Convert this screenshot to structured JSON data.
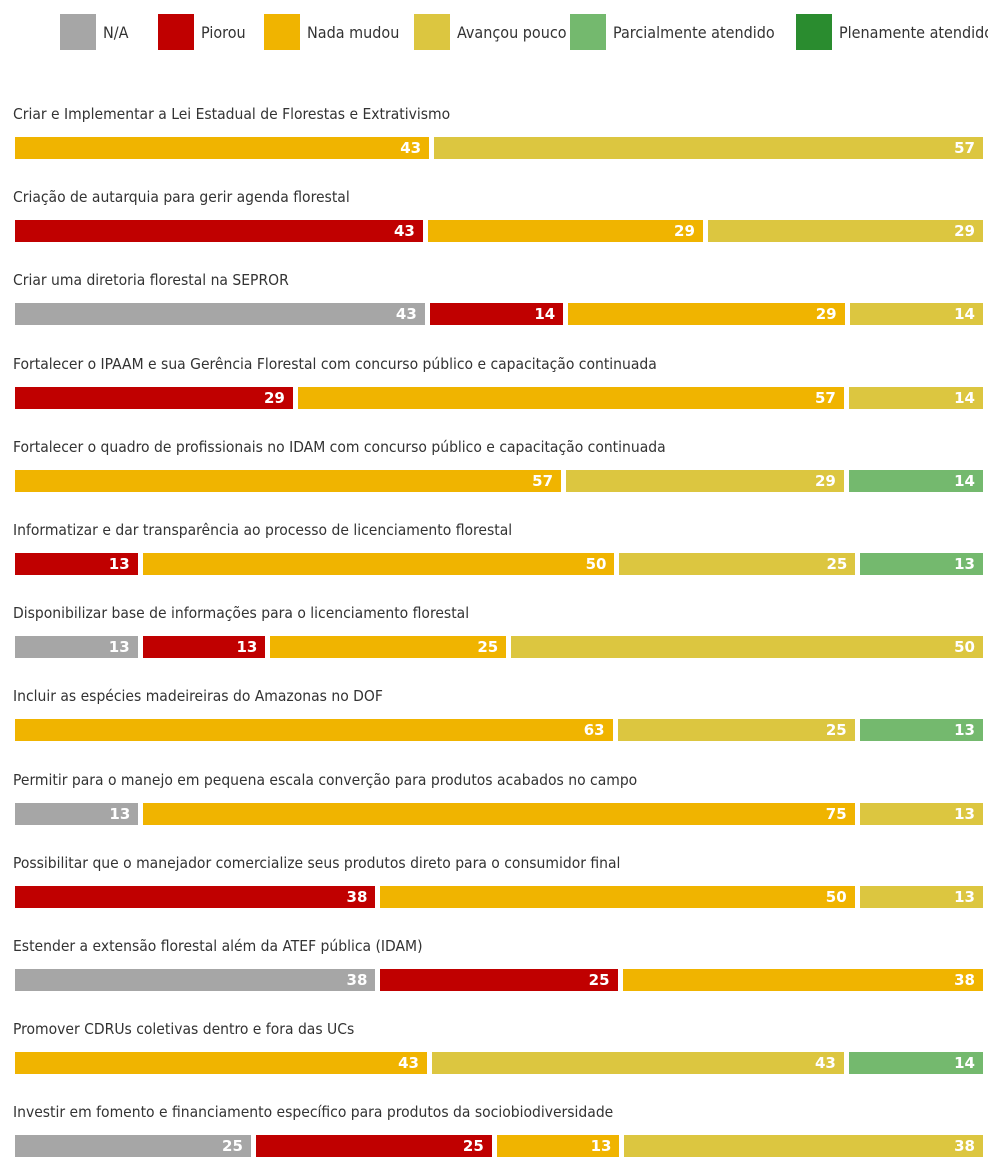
{
  "chart_data": {
    "type": "bar",
    "orientation": "horizontal",
    "stacked": true,
    "unit": "%",
    "title": "",
    "xlabel": "",
    "ylabel": "",
    "xlim": [
      0,
      100
    ],
    "grid": false,
    "legend_position": "top",
    "legend": [
      {
        "key": "na",
        "label": "N/A",
        "color": "#a6a6a6"
      },
      {
        "key": "piorou",
        "label": "Piorou",
        "color": "#c00000"
      },
      {
        "key": "nada",
        "label": "Nada mudou",
        "color": "#f0b400"
      },
      {
        "key": "pouco",
        "label": "Avançou pouco",
        "color": "#dcc640"
      },
      {
        "key": "parcial",
        "label": "Parcialmente atendido",
        "color": "#74b96e"
      },
      {
        "key": "pleno",
        "label": "Plenamente atendido",
        "color": "#2a8c2f"
      }
    ],
    "categories": [
      {
        "label": "Criar e Implementar a Lei Estadual de Florestas e Extrativismo",
        "segments": [
          {
            "key": "nada",
            "value": 43
          },
          {
            "key": "pouco",
            "value": 57
          }
        ]
      },
      {
        "label": "Criação de autarquia para gerir agenda florestal",
        "segments": [
          {
            "key": "piorou",
            "value": 43
          },
          {
            "key": "nada",
            "value": 29
          },
          {
            "key": "pouco",
            "value": 29
          }
        ]
      },
      {
        "label": "Criar uma diretoria florestal na SEPROR",
        "segments": [
          {
            "key": "na",
            "value": 43
          },
          {
            "key": "piorou",
            "value": 14
          },
          {
            "key": "nada",
            "value": 29
          },
          {
            "key": "pouco",
            "value": 14
          }
        ]
      },
      {
        "label": "Fortalecer o IPAAM e sua Gerência Florestal com concurso público e capacitação continuada",
        "segments": [
          {
            "key": "piorou",
            "value": 29
          },
          {
            "key": "nada",
            "value": 57
          },
          {
            "key": "pouco",
            "value": 14
          }
        ]
      },
      {
        "label": "Fortalecer o quadro de profissionais no IDAM com concurso público e capacitação continuada",
        "segments": [
          {
            "key": "nada",
            "value": 57
          },
          {
            "key": "pouco",
            "value": 29
          },
          {
            "key": "parcial",
            "value": 14
          }
        ]
      },
      {
        "label": "Informatizar e dar transparência ao processo de licenciamento florestal",
        "segments": [
          {
            "key": "piorou",
            "value": 13
          },
          {
            "key": "nada",
            "value": 50
          },
          {
            "key": "pouco",
            "value": 25
          },
          {
            "key": "parcial",
            "value": 13
          }
        ]
      },
      {
        "label": "Disponibilizar base de informações para o licenciamento florestal",
        "segments": [
          {
            "key": "na",
            "value": 13
          },
          {
            "key": "piorou",
            "value": 13
          },
          {
            "key": "nada",
            "value": 25
          },
          {
            "key": "pouco",
            "value": 50
          }
        ]
      },
      {
        "label": "Incluir as espécies madeireiras do Amazonas no DOF",
        "segments": [
          {
            "key": "nada",
            "value": 63
          },
          {
            "key": "pouco",
            "value": 25
          },
          {
            "key": "parcial",
            "value": 13
          }
        ]
      },
      {
        "label": "Permitir para o manejo em pequena escala converção para produtos acabados no campo",
        "segments": [
          {
            "key": "na",
            "value": 13
          },
          {
            "key": "nada",
            "value": 75
          },
          {
            "key": "pouco",
            "value": 13
          }
        ]
      },
      {
        "label": "Possibilitar que o manejador comercialize seus produtos direto para o consumidor final",
        "segments": [
          {
            "key": "piorou",
            "value": 38
          },
          {
            "key": "nada",
            "value": 50
          },
          {
            "key": "pouco",
            "value": 13
          }
        ]
      },
      {
        "label": "Estender a extensão florestal além da ATEF pública (IDAM)",
        "segments": [
          {
            "key": "na",
            "value": 38
          },
          {
            "key": "piorou",
            "value": 25
          },
          {
            "key": "nada",
            "value": 38
          }
        ]
      },
      {
        "label": "Promover CDRUs coletivas dentro e fora das UCs",
        "segments": [
          {
            "key": "nada",
            "value": 43
          },
          {
            "key": "pouco",
            "value": 43
          },
          {
            "key": "parcial",
            "value": 14
          }
        ]
      },
      {
        "label": "Investir em fomento e financiamento específico para produtos da sociobiodiversidade",
        "segments": [
          {
            "key": "na",
            "value": 25
          },
          {
            "key": "piorou",
            "value": 25
          },
          {
            "key": "nada",
            "value": 13
          },
          {
            "key": "pouco",
            "value": 38
          }
        ]
      }
    ]
  }
}
